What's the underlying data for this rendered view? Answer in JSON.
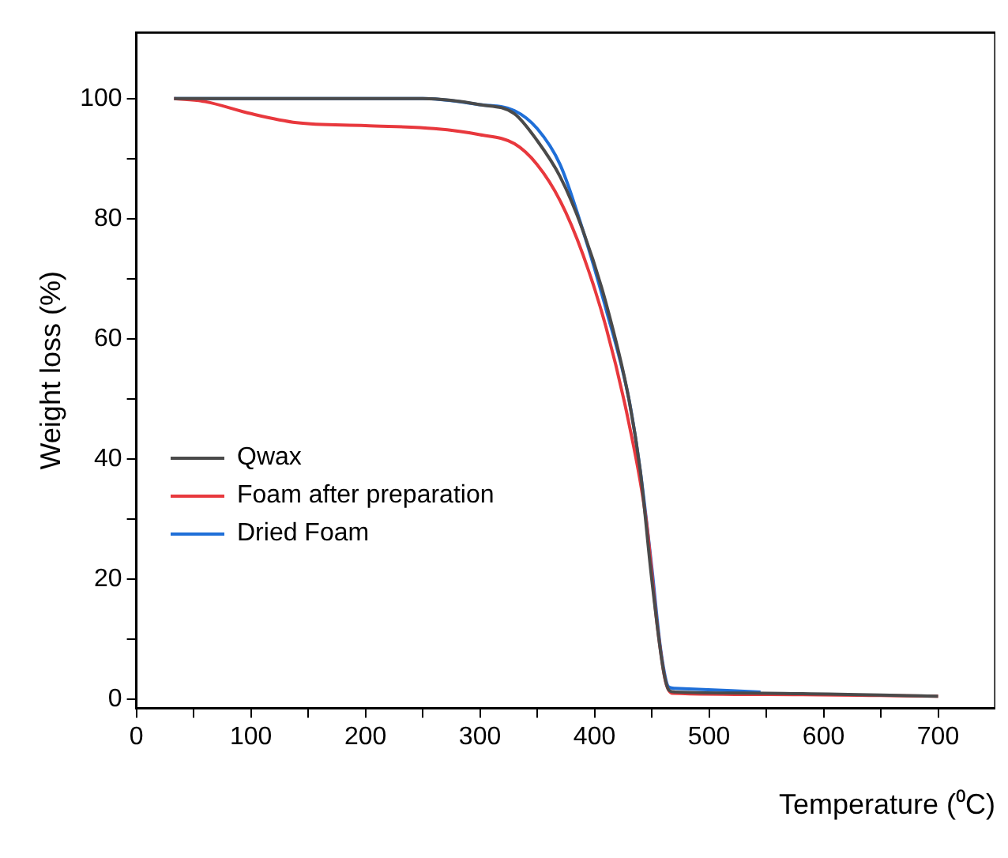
{
  "chart_data": {
    "type": "line",
    "xlabel": "Temperature (⁰C)",
    "ylabel": "Weight loss (%)",
    "xlim": [
      0,
      750
    ],
    "ylim": [
      -1.5,
      111
    ],
    "xticks": [
      0,
      {
        "value": 50,
        "label": null
      },
      100,
      {
        "value": 150,
        "label": null
      },
      200,
      {
        "value": 250,
        "label": null
      },
      300,
      {
        "value": 350,
        "label": null
      },
      400,
      {
        "value": 450,
        "label": null
      },
      500,
      {
        "value": 550,
        "label": null
      },
      600,
      {
        "value": 650,
        "label": null
      },
      700
    ],
    "yticks": [
      0,
      {
        "value": 10,
        "label": null
      },
      20,
      {
        "value": 30,
        "label": null
      },
      40,
      {
        "value": 50,
        "label": null
      },
      60,
      {
        "value": 70,
        "label": null
      },
      80,
      {
        "value": 90,
        "label": null
      },
      100
    ],
    "grid": false,
    "legend": "left",
    "marker": "none",
    "line_style": "solid",
    "series": [
      {
        "name": "Qwax",
        "color": "#4a4a4a",
        "x": [
          33,
          150,
          250,
          300,
          330,
          350,
          370,
          390,
          410,
          430,
          440,
          450,
          460,
          465,
          470,
          550,
          700
        ],
        "values": [
          100,
          100,
          100,
          99,
          97.5,
          93,
          87,
          78,
          66,
          50,
          38,
          20,
          5,
          1.5,
          1.2,
          1,
          0.5
        ]
      },
      {
        "name": "Foam after preparation",
        "color": "#e8383d",
        "x": [
          33,
          60,
          100,
          140,
          200,
          260,
          300,
          330,
          350,
          370,
          390,
          410,
          430,
          445,
          455,
          462,
          468,
          550,
          700
        ],
        "values": [
          100,
          99.5,
          97.5,
          96,
          95.5,
          95,
          94,
          92.5,
          89,
          83,
          74,
          62,
          46,
          30,
          12,
          3,
          1,
          0.8,
          0.5
        ]
      },
      {
        "name": "Dried Foam",
        "color": "#1f6fd8",
        "x": [
          33,
          150,
          250,
          300,
          330,
          350,
          370,
          390,
          410,
          430,
          440,
          450,
          458,
          465,
          470,
          545
        ],
        "values": [
          100,
          100,
          100,
          99,
          98,
          95,
          89,
          78,
          65,
          50,
          38,
          22,
          8,
          2,
          1.8,
          1.2
        ]
      }
    ]
  }
}
